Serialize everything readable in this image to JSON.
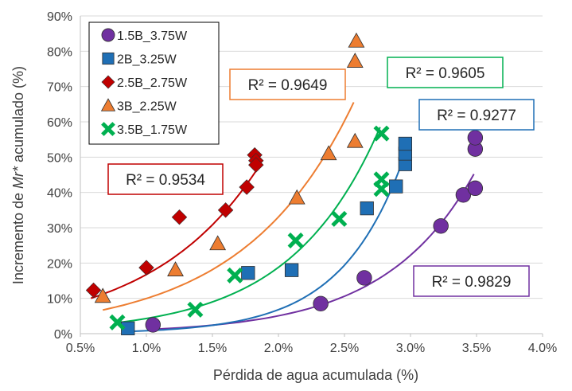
{
  "chart_data": {
    "type": "scatter",
    "xlabel": "Pérdida de agua acumulada (%)",
    "ylabel_prefix": "Incremento de ",
    "ylabel_italic": "Mr*",
    "ylabel_suffix": " acumulado (%)",
    "xlim": [
      0.5,
      4.0
    ],
    "ylim": [
      0,
      90
    ],
    "x_ticks": [
      "0.5%",
      "1.0%",
      "1.5%",
      "2.0%",
      "2.5%",
      "3.0%",
      "3.5%",
      "4.0%"
    ],
    "y_ticks": [
      "0%",
      "10%",
      "20%",
      "30%",
      "40%",
      "50%",
      "60%",
      "70%",
      "80%",
      "90%"
    ],
    "grid": "horizontal",
    "legend_position": "top-left",
    "series": [
      {
        "name": "1.5B_3.75W",
        "color": "#7030A0",
        "marker": "circle",
        "r2": "R² = 0.9829",
        "points": [
          [
            1.05,
            2.5
          ],
          [
            2.32,
            8.5
          ],
          [
            2.65,
            15.8
          ],
          [
            3.23,
            30.5
          ],
          [
            3.4,
            39.3
          ],
          [
            3.49,
            41.2
          ],
          [
            3.49,
            52.3
          ],
          [
            3.49,
            55.5
          ]
        ],
        "fit": {
          "a": 0.262,
          "b": 1.48,
          "x_from": 1.05,
          "x_to": 3.48
        }
      },
      {
        "name": "2B_3.25W",
        "color": "#1F6FB5",
        "marker": "square",
        "r2": "R² = 0.9277",
        "points": [
          [
            0.86,
            1.5
          ],
          [
            1.77,
            17.2
          ],
          [
            2.1,
            18.0
          ],
          [
            2.67,
            35.5
          ],
          [
            2.89,
            41.7
          ],
          [
            2.96,
            48.0
          ],
          [
            2.96,
            51.0
          ],
          [
            2.96,
            53.8
          ]
        ],
        "fit": {
          "a": 0.1018,
          "b": 2.1,
          "x_from": 0.85,
          "x_to": 2.95
        }
      },
      {
        "name": "2.5B_2.75W",
        "color": "#C00000",
        "marker": "diamond",
        "r2": "R² = 0.9534",
        "points": [
          [
            0.6,
            12.3
          ],
          [
            1.0,
            18.7
          ],
          [
            1.25,
            33.0
          ],
          [
            1.6,
            35.0
          ],
          [
            1.76,
            41.5
          ],
          [
            1.82,
            50.6
          ],
          [
            1.83,
            49.0
          ],
          [
            1.83,
            47.8
          ]
        ],
        "fit": {
          "a": 4.945,
          "b": 1.22,
          "x_from": 0.58,
          "x_to": 1.84
        }
      },
      {
        "name": "3B_2.25W",
        "color": "#ED7D31",
        "marker": "triangle",
        "r2": "R² = 0.9649",
        "points": [
          [
            0.67,
            10.6
          ],
          [
            1.22,
            18.1
          ],
          [
            1.54,
            25.5
          ],
          [
            2.14,
            38.5
          ],
          [
            2.38,
            51.0
          ],
          [
            2.58,
            54.5
          ],
          [
            2.58,
            77.2
          ],
          [
            2.59,
            82.9
          ]
        ],
        "fit": {
          "a": 3.0,
          "b": 1.2,
          "x_from": 0.67,
          "x_to": 2.57
        }
      },
      {
        "name": "3.5B_1.75W",
        "color": "#00B050",
        "marker": "x",
        "r2": "R² = 0.9605",
        "points": [
          [
            0.78,
            3.2
          ],
          [
            1.37,
            6.8
          ],
          [
            1.67,
            16.5
          ],
          [
            2.13,
            26.4
          ],
          [
            2.46,
            32.5
          ],
          [
            2.78,
            41.0
          ],
          [
            2.78,
            43.7
          ],
          [
            2.78,
            56.7
          ]
        ],
        "fit": {
          "a": 0.9835,
          "b": 1.475,
          "x_from": 0.78,
          "x_to": 2.77
        }
      }
    ]
  }
}
